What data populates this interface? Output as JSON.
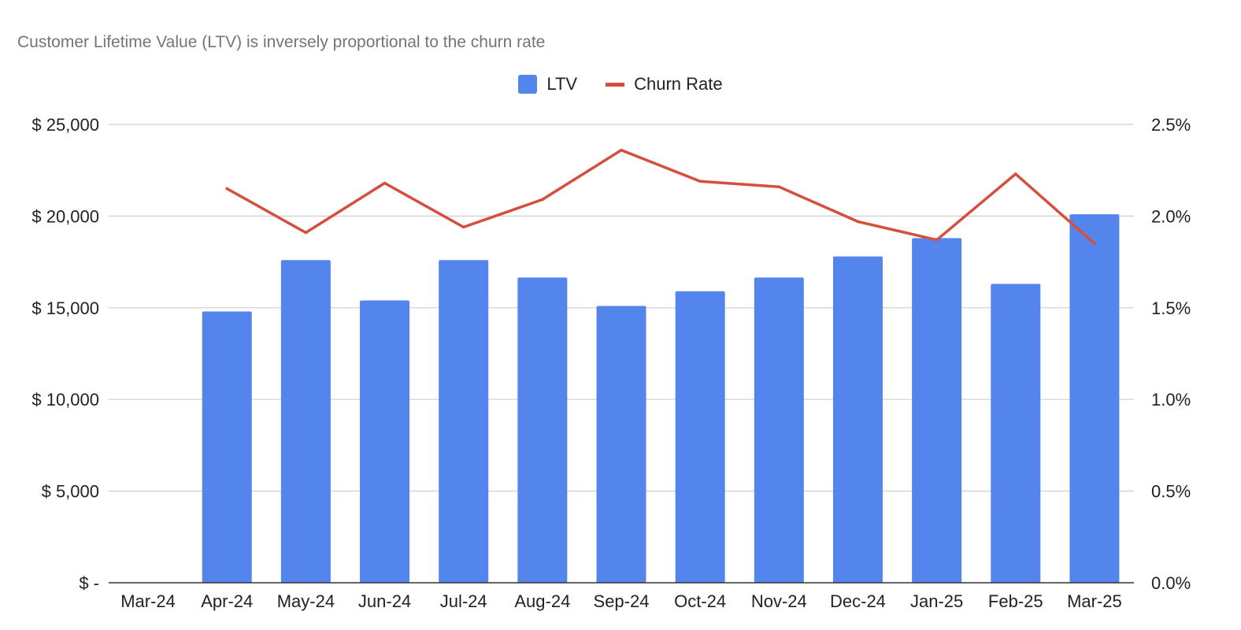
{
  "colors": {
    "ltv": "#5385ed",
    "churn": "#d64f3e",
    "grid": "#cfcfcf",
    "axis": "#333333"
  },
  "chart_data": {
    "type": "bar",
    "title": "Customer Lifetime Value (LTV) is inversely proportional to the churn rate",
    "categories": [
      "Mar-24",
      "Apr-24",
      "May-24",
      "Jun-24",
      "Jul-24",
      "Aug-24",
      "Sep-24",
      "Oct-24",
      "Nov-24",
      "Dec-24",
      "Jan-25",
      "Feb-25",
      "Mar-25"
    ],
    "series": [
      {
        "name": "LTV",
        "type": "bar",
        "axis": "left",
        "values": [
          null,
          14800,
          17600,
          15400,
          17600,
          16650,
          15100,
          15900,
          16650,
          17800,
          18800,
          16300,
          20100
        ]
      },
      {
        "name": "Churn Rate",
        "type": "line",
        "axis": "right",
        "values": [
          null,
          2.15,
          1.91,
          2.18,
          1.94,
          2.09,
          2.36,
          2.19,
          2.16,
          1.97,
          1.87,
          2.23,
          1.85
        ]
      }
    ],
    "y_left": {
      "ylim": [
        0,
        25000
      ],
      "ticks": [
        0,
        5000,
        10000,
        15000,
        20000,
        25000
      ],
      "tick_labels": [
        "$ -",
        "$ 5,000",
        "$ 10,000",
        "$ 15,000",
        "$ 20,000",
        "$ 25,000"
      ]
    },
    "y_right": {
      "ylim": [
        0,
        2.5
      ],
      "ticks": [
        0,
        0.5,
        1.0,
        1.5,
        2.0,
        2.5
      ],
      "tick_labels": [
        "0.0%",
        "0.5%",
        "1.0%",
        "1.5%",
        "2.0%",
        "2.5%"
      ]
    },
    "grid": true,
    "legend_position": "top-center"
  }
}
